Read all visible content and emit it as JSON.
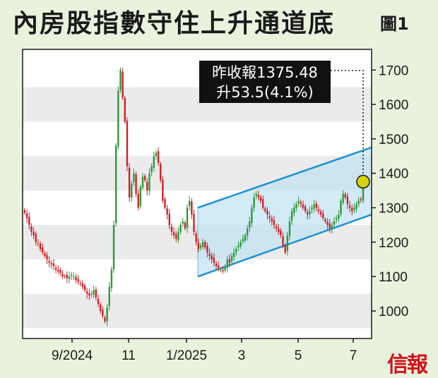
{
  "title": "內房股指數守住上升通道底",
  "figure_label": "圖1",
  "brand": "信報",
  "annotation": {
    "line1": "昨收報1375.48",
    "line2": "升53.5(4.1%)"
  },
  "colors": {
    "background": "#e9f2dd",
    "plot_background": "#ffffff",
    "band": "#ebebeb",
    "up": "#2e9a3a",
    "down": "#cf2027",
    "channel": "#1e90d6",
    "channel_fill": "#bfe2f4",
    "marker": "#d7d20c"
  },
  "chart_data": {
    "type": "candlestick",
    "ylim": [
      920,
      1760
    ],
    "y_ticks": [
      1000,
      1100,
      1200,
      1300,
      1400,
      1500,
      1600,
      1700
    ],
    "x_ticks": [
      "9/2024",
      "11",
      "1/2025",
      "3",
      "5",
      "7"
    ],
    "last_close": 1375.48,
    "change": 53.5,
    "change_pct": 4.1,
    "channel": {
      "upper": [
        [
          0,
          1300
        ],
        [
          1,
          1475
        ]
      ],
      "lower": [
        [
          0,
          1100
        ],
        [
          1,
          1280
        ]
      ]
    },
    "close_series": [
      1285,
      1270,
      1250,
      1230,
      1220,
      1200,
      1195,
      1180,
      1170,
      1160,
      1150,
      1140,
      1135,
      1130,
      1120,
      1115,
      1110,
      1100,
      1100,
      1095,
      1100,
      1105,
      1100,
      1090,
      1085,
      1080,
      1070,
      1060,
      1050,
      1045,
      1050,
      1060,
      1040,
      1020,
      1000,
      985,
      970,
      1010,
      1070,
      1120,
      1250,
      1480,
      1640,
      1700,
      1620,
      1550,
      1420,
      1330,
      1370,
      1400,
      1340,
      1300,
      1360,
      1390,
      1380,
      1350,
      1400,
      1420,
      1450,
      1460,
      1430,
      1380,
      1320,
      1300,
      1280,
      1250,
      1230,
      1220,
      1210,
      1230,
      1250,
      1260,
      1240,
      1300,
      1320,
      1280,
      1230,
      1200,
      1180,
      1190,
      1200,
      1185,
      1170,
      1160,
      1150,
      1140,
      1130,
      1125,
      1120,
      1115,
      1130,
      1150,
      1140,
      1160,
      1170,
      1180,
      1190,
      1200,
      1210,
      1220,
      1240,
      1260,
      1300,
      1330,
      1340,
      1330,
      1320,
      1300,
      1290,
      1280,
      1270,
      1260,
      1250,
      1240,
      1230,
      1220,
      1190,
      1170,
      1220,
      1260,
      1290,
      1300,
      1310,
      1320,
      1310,
      1300,
      1290,
      1280,
      1290,
      1300,
      1310,
      1300,
      1290,
      1280,
      1270,
      1260,
      1250,
      1240,
      1250,
      1260,
      1270,
      1280,
      1320,
      1340,
      1330,
      1310,
      1300,
      1290,
      1300,
      1310,
      1320,
      1322,
      1376
    ]
  }
}
